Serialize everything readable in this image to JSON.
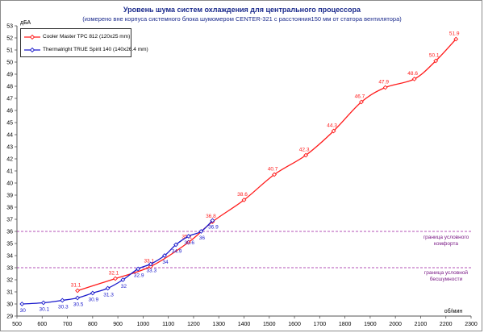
{
  "chart_data": {
    "type": "line",
    "title": "Уровень шума систем охлаждения для центрального процессора",
    "subtitle": "(измерено вне корпуса системного блока шумомером CENTER-321 с расстояния150 мм от статора вентилятора)",
    "ylabel": "дБА",
    "xlabel": "об/мин",
    "xlim": [
      500,
      2300
    ],
    "ylim": [
      29,
      53
    ],
    "xticks": [
      500,
      600,
      700,
      800,
      900,
      1000,
      1100,
      1200,
      1300,
      1400,
      1500,
      1600,
      1700,
      1800,
      1900,
      2000,
      2100,
      2200,
      2300
    ],
    "yticks": [
      29,
      30,
      31,
      32,
      33,
      34,
      35,
      36,
      37,
      38,
      39,
      40,
      41,
      42,
      43,
      44,
      45,
      46,
      47,
      48,
      49,
      50,
      51,
      52,
      53
    ],
    "grid": false,
    "legend_position": "top-left",
    "series": [
      {
        "name": "Cooler Master TPC 812 (120x25 mm)",
        "color": "#ff1a1a",
        "x": [
          740,
          890,
          1030,
          1180,
          1275,
          1400,
          1520,
          1645,
          1755,
          1865,
          1960,
          2075,
          2160,
          2240
        ],
        "y": [
          31.1,
          32.1,
          33.1,
          35.1,
          36.8,
          38.6,
          40.7,
          42.3,
          44.3,
          46.7,
          47.9,
          48.6,
          50.1,
          51.9
        ],
        "labels": [
          "31.1",
          "32.1",
          "33.1",
          "35.1",
          "36.8",
          "38.6",
          "40.7",
          "42.3",
          "44.3",
          "46.7",
          "47.9",
          "48.6",
          "50.1",
          "51.9"
        ]
      },
      {
        "name": "Thermalright TRUE Spirit 140 (140x26.4 mm)",
        "color": "#1a1acc",
        "x": [
          520,
          605,
          680,
          740,
          800,
          860,
          920,
          980,
          1030,
          1085,
          1130,
          1180,
          1230,
          1275
        ],
        "y": [
          30,
          30.1,
          30.3,
          30.5,
          30.9,
          31.3,
          32,
          32.9,
          33.3,
          34,
          34.9,
          35.6,
          36,
          36.9
        ],
        "labels": [
          "30",
          "30.1",
          "30.3",
          "30.5",
          "30.9",
          "31.3",
          "32",
          "32.9",
          "33.3",
          "34",
          "34.9",
          "35.6",
          "36",
          "36.9"
        ]
      }
    ],
    "reference_lines": [
      {
        "y": 36,
        "label_line1": "граница условного",
        "label_line2": "комфорта"
      },
      {
        "y": 33,
        "label_line1": "граница условной",
        "label_line2": "бесшумности"
      }
    ],
    "ref_color": "#9a1aa0"
  }
}
